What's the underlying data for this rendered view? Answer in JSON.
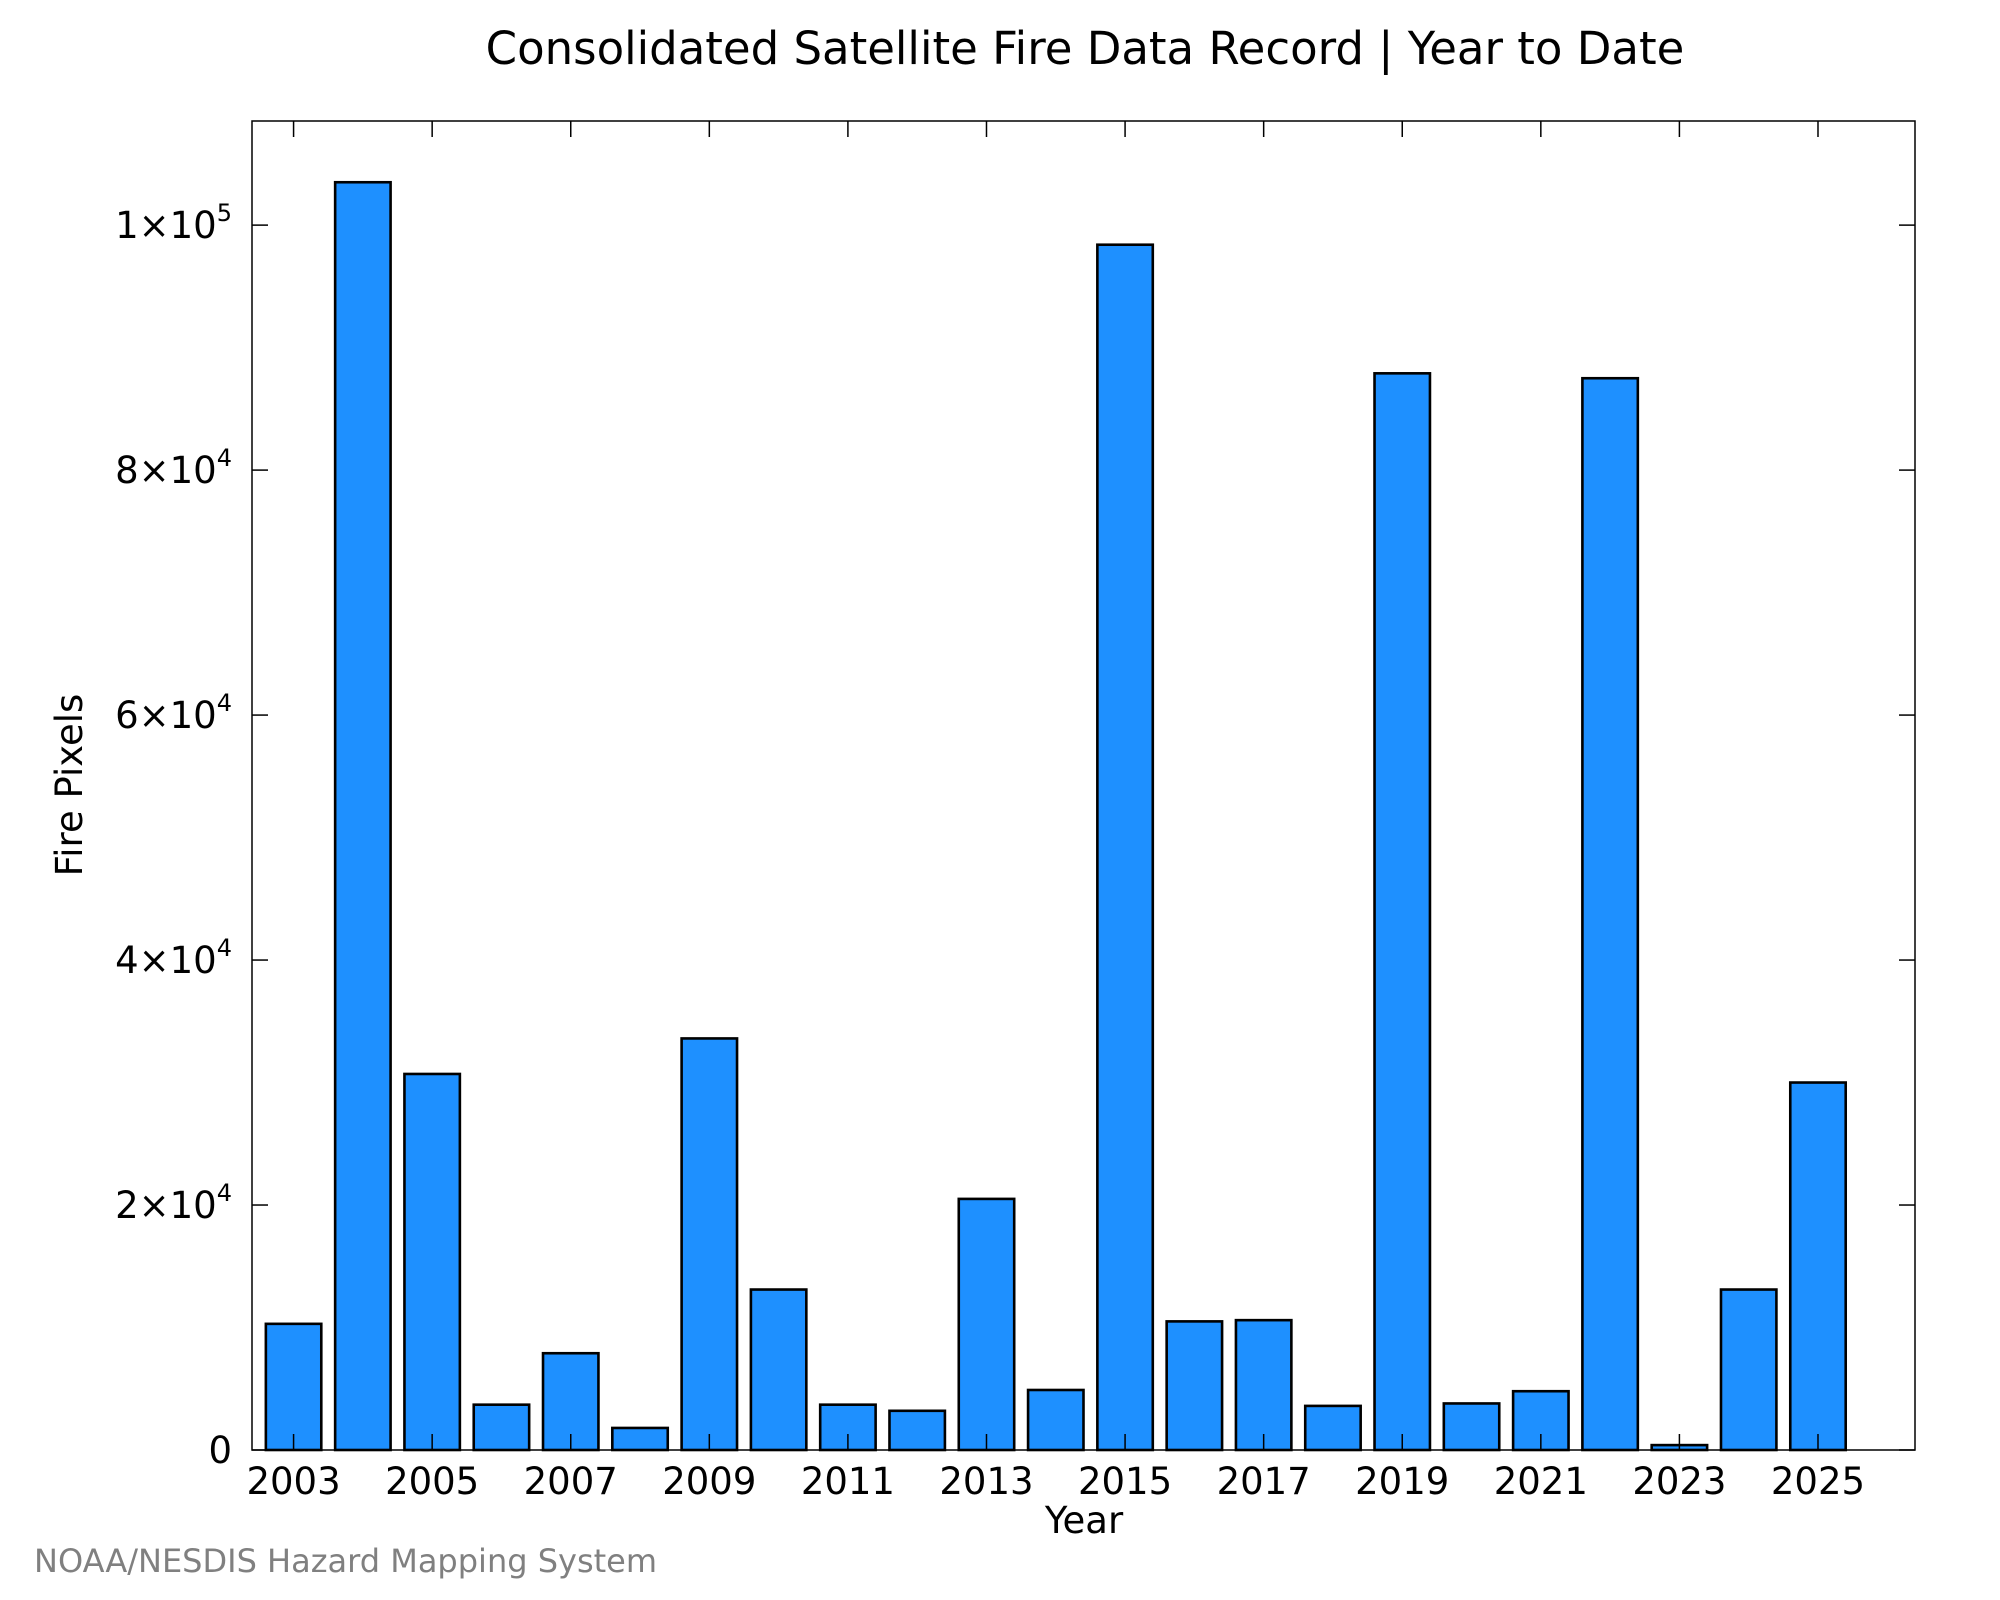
{
  "chart_data": {
    "type": "bar",
    "title": "Consolidated Satellite Fire Data Record | Year to Date",
    "xlabel": "Year",
    "ylabel": "Fire Pixels",
    "source": "NOAA/NESDIS Hazard Mapping System",
    "categories": [
      2003,
      2004,
      2005,
      2006,
      2007,
      2008,
      2009,
      2010,
      2011,
      2012,
      2013,
      2014,
      2015,
      2016,
      2017,
      2018,
      2019,
      2020,
      2021,
      2022,
      2023,
      2024,
      2025
    ],
    "values": [
      10300,
      103500,
      30700,
      3700,
      7900,
      1800,
      33600,
      13100,
      3700,
      3200,
      20500,
      4900,
      98400,
      10500,
      10600,
      3600,
      87900,
      3800,
      4800,
      87500,
      400,
      13100,
      30000
    ],
    "x_ticks": [
      2003,
      2005,
      2007,
      2009,
      2011,
      2013,
      2015,
      2017,
      2019,
      2021,
      2023,
      2025
    ],
    "x_tick_labels": [
      "2003",
      "2005",
      "2007",
      "2009",
      "2011",
      "2013",
      "2015",
      "2017",
      "2019",
      "2021",
      "2023",
      "2025"
    ],
    "y_ticks": [
      {
        "value": 0,
        "mantissa": "0",
        "exponent": ""
      },
      {
        "value": 20000,
        "mantissa": "2×10",
        "exponent": "4"
      },
      {
        "value": 40000,
        "mantissa": "4×10",
        "exponent": "4"
      },
      {
        "value": 60000,
        "mantissa": "6×10",
        "exponent": "4"
      },
      {
        "value": 80000,
        "mantissa": "8×10",
        "exponent": "4"
      },
      {
        "value": 100000,
        "mantissa": "1×10",
        "exponent": "5"
      }
    ],
    "xlim": [
      2002.4,
      2026.4
    ],
    "ylim": [
      0,
      108500
    ],
    "bar_color": "#1e90ff",
    "edge_color": "#000000",
    "grid": false,
    "legend": "none"
  }
}
